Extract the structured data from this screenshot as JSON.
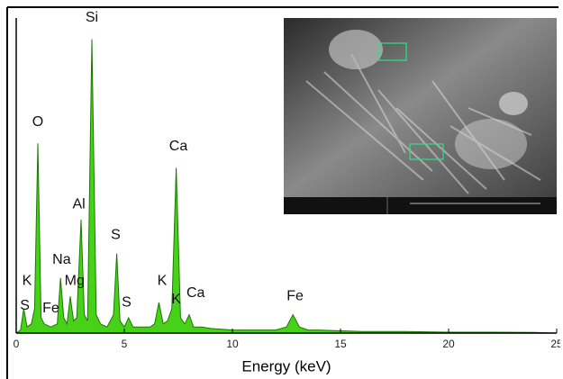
{
  "chart_data": {
    "type": "area",
    "x_label": "Energy (keV)",
    "color": "#33cc00",
    "x": [
      0,
      0.2,
      0.35,
      0.5,
      0.7,
      0.85,
      1.0,
      1.15,
      1.3,
      1.6,
      1.9,
      2.05,
      2.2,
      2.35,
      2.5,
      2.65,
      2.8,
      3.0,
      3.15,
      3.3,
      3.5,
      3.7,
      3.9,
      4.2,
      4.5,
      4.65,
      4.8,
      5.0,
      5.2,
      5.4,
      5.8,
      6.2,
      6.4,
      6.6,
      6.8,
      7.0,
      7.2,
      7.4,
      7.6,
      7.8,
      8.0,
      8.2,
      8.6,
      9,
      10,
      11,
      12,
      12.5,
      12.8,
      13.1,
      13.5,
      14,
      16,
      18,
      20,
      22,
      24,
      25
    ],
    "values": [
      0,
      1,
      8,
      2,
      3,
      8,
      62,
      5,
      3,
      2,
      3,
      18,
      5,
      3,
      12,
      4,
      5,
      37,
      6,
      4,
      96,
      6,
      3,
      2,
      6,
      26,
      4,
      2,
      5,
      2,
      2,
      2,
      3,
      10,
      3,
      4,
      8,
      54,
      5,
      3,
      6,
      2,
      2,
      1.5,
      1,
      1,
      1,
      2,
      6,
      2,
      1,
      1,
      0.5,
      0.5,
      0.3,
      0.3,
      0.2,
      0
    ],
    "xlim": [
      0,
      25
    ],
    "xticks": [
      0,
      5,
      10,
      15,
      20,
      25
    ],
    "ylim": [
      0,
      100
    ],
    "annotations": [
      {
        "text": "Si",
        "x": 3.5,
        "y": 100
      },
      {
        "text": "O",
        "x": 1.0,
        "y": 66
      },
      {
        "text": "Al",
        "x": 2.9,
        "y": 39
      },
      {
        "text": "Ca",
        "x": 7.5,
        "y": 58
      },
      {
        "text": "S",
        "x": 4.6,
        "y": 29
      },
      {
        "text": "Na",
        "x": 2.1,
        "y": 21
      },
      {
        "text": "Mg",
        "x": 2.7,
        "y": 14
      },
      {
        "text": "K",
        "x": 0.5,
        "y": 14
      },
      {
        "text": "S",
        "x": 0.4,
        "y": 6
      },
      {
        "text": "Fe",
        "x": 1.6,
        "y": 5
      },
      {
        "text": "S",
        "x": 5.1,
        "y": 7
      },
      {
        "text": "K",
        "x": 6.75,
        "y": 14
      },
      {
        "text": "K",
        "x": 7.4,
        "y": 8
      },
      {
        "text": "Ca",
        "x": 8.3,
        "y": 10
      },
      {
        "text": "Fe",
        "x": 12.9,
        "y": 9
      }
    ]
  }
}
